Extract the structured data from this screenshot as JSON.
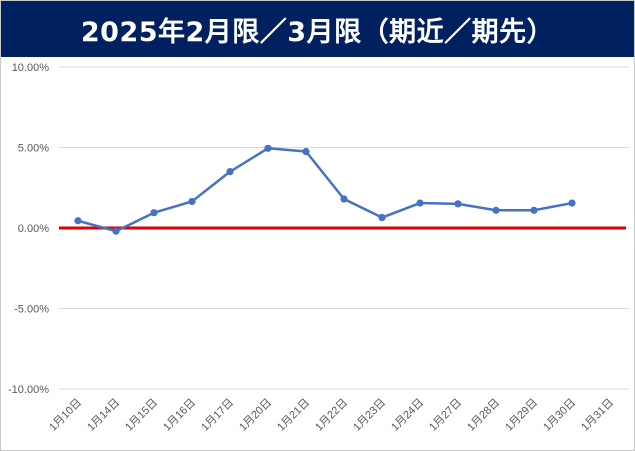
{
  "title": "2025年2月限／3月限（期近／期先）",
  "chart_data": {
    "type": "line",
    "title": "2025年2月限／3月限（期近／期先）",
    "xlabel": "",
    "ylabel": "",
    "categories": [
      "1月10日",
      "1月14日",
      "1月15日",
      "1月16日",
      "1月17日",
      "1月20日",
      "1月21日",
      "1月22日",
      "1月23日",
      "1月24日",
      "1月27日",
      "1月28日",
      "1月29日",
      "1月30日",
      "1月31日"
    ],
    "series": [
      {
        "values": [
          0.45,
          -0.2,
          0.95,
          1.65,
          3.5,
          4.95,
          4.75,
          1.8,
          0.65,
          1.55,
          1.5,
          1.1,
          1.1,
          1.55,
          null
        ]
      }
    ],
    "ylim": [
      -10,
      10
    ],
    "yticks": [
      10,
      5,
      0,
      -5,
      -10
    ],
    "ytick_labels": [
      "10.00%",
      "5.00%",
      "0.00%",
      "-5.00%",
      "-10.00%"
    ],
    "reference_line": {
      "y": 0
    },
    "grid": true,
    "legend": "none",
    "colors": {
      "series": "#4472C4",
      "reference": "#E00000",
      "grid": "#D9D9D9",
      "title_bg": "#002060"
    }
  }
}
